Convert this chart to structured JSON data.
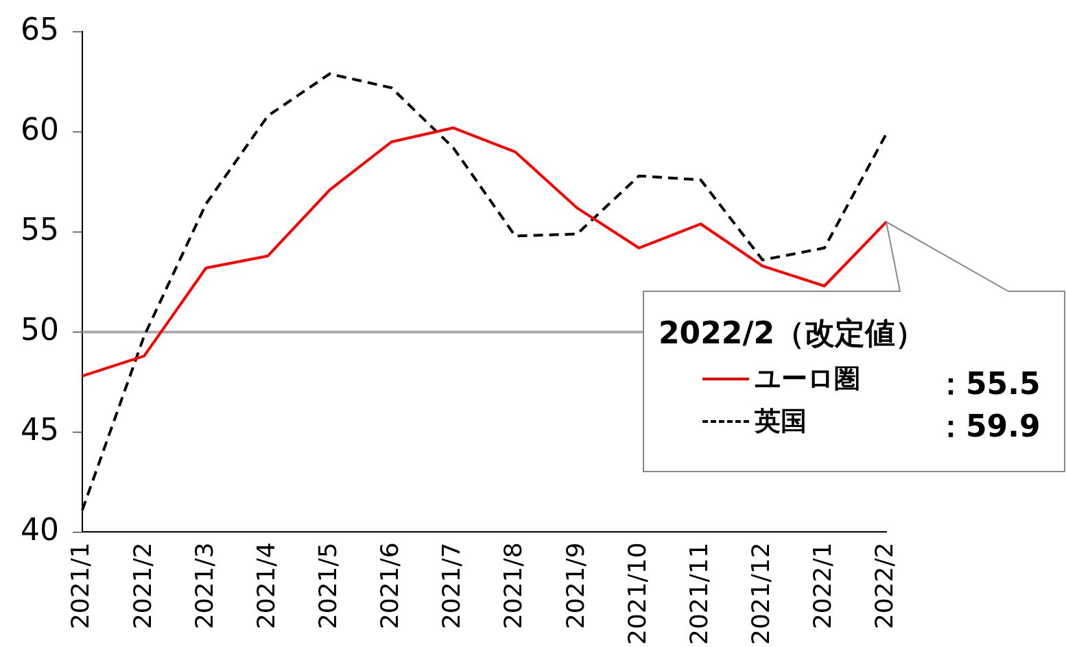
{
  "chart_data": {
    "type": "line",
    "categories": [
      "2021/1",
      "2021/2",
      "2021/3",
      "2021/4",
      "2021/5",
      "2021/6",
      "2021/7",
      "2021/8",
      "2021/9",
      "2021/10",
      "2021/11",
      "2021/12",
      "2022/1",
      "2022/2"
    ],
    "series": [
      {
        "name": "ユーロ圏",
        "color": "#ff0000",
        "line_style": "solid",
        "values": [
          47.8,
          48.8,
          53.2,
          53.8,
          57.1,
          59.5,
          60.2,
          59.0,
          56.2,
          54.2,
          55.4,
          53.3,
          52.3,
          55.5
        ]
      },
      {
        "name": "英国",
        "color": "#000000",
        "line_style": "dashed",
        "values": [
          41.1,
          49.8,
          56.4,
          60.8,
          62.9,
          62.2,
          59.2,
          54.8,
          54.9,
          57.8,
          57.6,
          53.6,
          54.2,
          59.9
        ]
      }
    ],
    "ylim": [
      40,
      65
    ],
    "yticks": [
      40,
      45,
      50,
      55,
      60,
      65
    ],
    "grid": false,
    "marker": "none",
    "legend": "bottom right",
    "ref_lines": [
      {
        "axis": "y",
        "value": 50,
        "color": "#aaaaaa"
      }
    ],
    "annotations": [
      "2022/2（改定値）",
      "：55.5",
      "：59.9"
    ]
  }
}
